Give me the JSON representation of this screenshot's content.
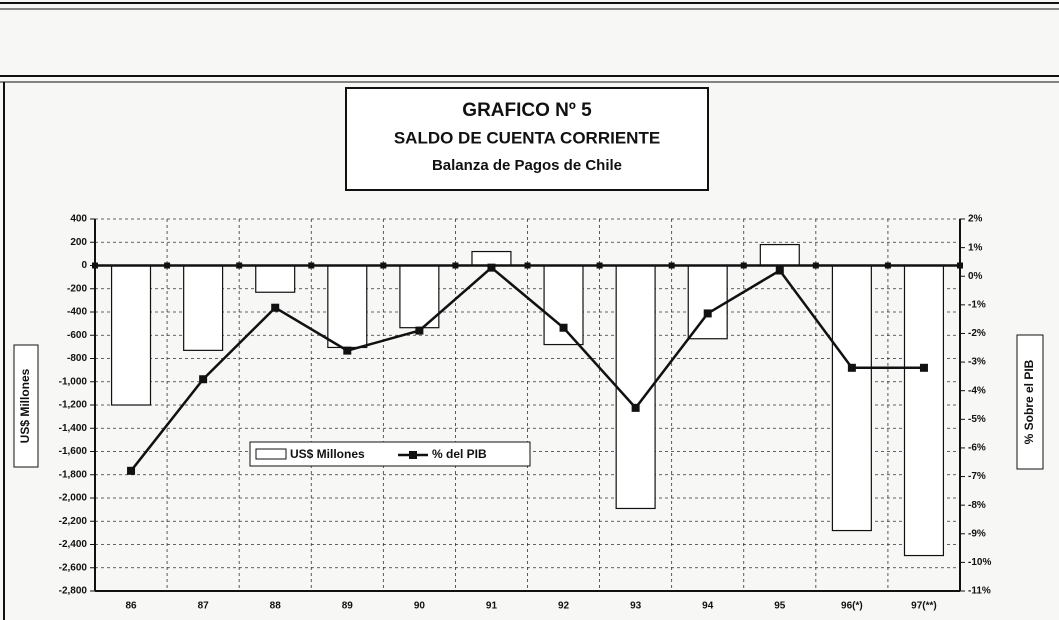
{
  "chart_data": {
    "type": "bar",
    "title": "GRAFICO Nº 5",
    "subtitle": "SALDO DE CUENTA CORRIENTE",
    "subtitle2": "Balanza de Pagos de Chile",
    "y_label": "US$ Millones",
    "y2_label": "% Sobre el PIB",
    "categories": [
      "86",
      "87",
      "88",
      "89",
      "90",
      "91",
      "92",
      "93",
      "94",
      "95",
      "96(*)",
      "97(**)"
    ],
    "series": [
      {
        "name": "US$ Millones",
        "type": "bar",
        "color": "#ffffff",
        "values": [
          -1200,
          -730,
          -230,
          -705,
          -535,
          120,
          -680,
          -2090,
          -630,
          180,
          -2280,
          -2495
        ]
      },
      {
        "name": "% del PIB",
        "type": "line",
        "axis": "y2",
        "color": "#111111",
        "values": [
          -6.8,
          -3.6,
          -1.1,
          -2.6,
          -1.9,
          0.3,
          -1.8,
          -4.6,
          -1.3,
          0.2,
          -3.2,
          -3.2
        ]
      }
    ],
    "ylim": [
      -2800,
      400
    ],
    "yticks": [
      400,
      200,
      0,
      -200,
      -400,
      -600,
      -800,
      {
        "value": -1000,
        "label": "-1,000"
      },
      {
        "value": -1200,
        "label": "-1,200"
      },
      {
        "value": -1400,
        "label": "-1,400"
      },
      {
        "value": -1600,
        "label": "-1,600"
      },
      {
        "value": -1800,
        "label": "-1,800"
      },
      {
        "value": -2000,
        "label": "-2,000"
      },
      {
        "value": -2200,
        "label": "-2,200"
      },
      {
        "value": -2400,
        "label": "-2,400"
      },
      {
        "value": -2600,
        "label": "-2,600"
      },
      {
        "value": -2800,
        "label": "-2,800"
      }
    ],
    "y2lim": [
      -11,
      2
    ],
    "y2ticks": [
      {
        "value": 2,
        "label": "2%"
      },
      {
        "value": 1,
        "label": "1%"
      },
      {
        "value": 0,
        "label": "0%"
      },
      {
        "value": -1,
        "label": "-1%"
      },
      {
        "value": -2,
        "label": "-2%"
      },
      {
        "value": -3,
        "label": "-3%"
      },
      {
        "value": -4,
        "label": "-4%"
      },
      {
        "value": -5,
        "label": "-5%"
      },
      {
        "value": -6,
        "label": "-6%"
      },
      {
        "value": -7,
        "label": "-7%"
      },
      {
        "value": -8,
        "label": "-8%"
      },
      {
        "value": -9,
        "label": "-9%"
      },
      {
        "value": -10,
        "label": "-10%"
      },
      {
        "value": -11,
        "label": "-11%"
      }
    ],
    "grid": true
  }
}
